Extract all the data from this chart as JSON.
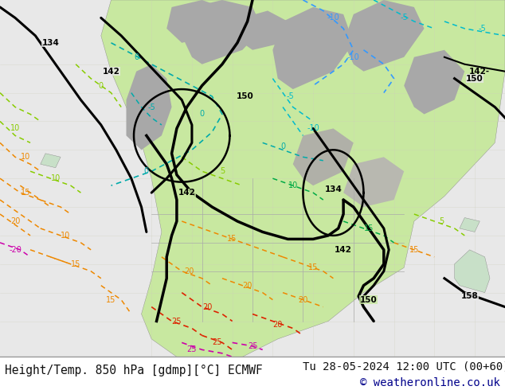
{
  "title_left": "Height/Temp. 850 hPa [gdmp][°C] ECMWF",
  "title_right": "Tu 28-05-2024 12:00 UTC (00+60)",
  "copyright": "© weatheronline.co.uk",
  "footer_text_color": "#111111",
  "copyright_color": "#00008B",
  "font_size_footer": 10.5,
  "bg_color": "#f0f0f0",
  "ocean_color": "#e8e8e8",
  "land_green": "#c8e8a0",
  "land_gray": "#b0b0b0",
  "footer_bg": "#d8d8d8"
}
